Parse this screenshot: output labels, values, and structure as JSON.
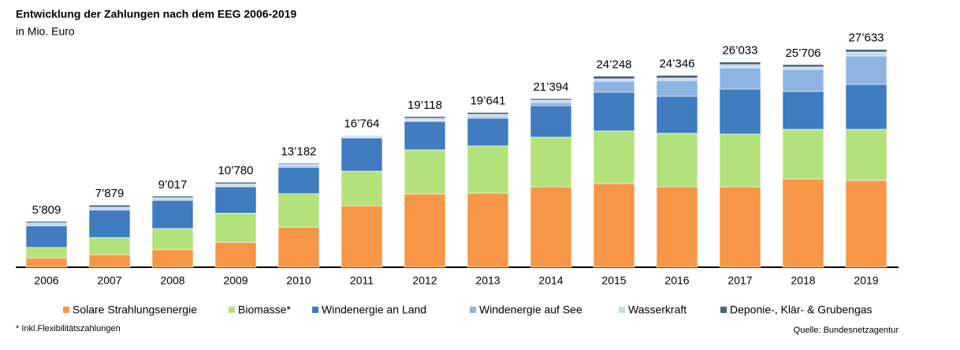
{
  "chart_data": {
    "type": "stacked_bar",
    "title": "Entwicklung der Zahlungen nach dem EEG 2006-2019",
    "subtitle": "in Mio. Euro",
    "categories": [
      "2006",
      "2007",
      "2008",
      "2009",
      "2010",
      "2011",
      "2012",
      "2013",
      "2014",
      "2015",
      "2016",
      "2017",
      "2018",
      "2019"
    ],
    "series": [
      {
        "name": "Solare Strahlungsenergie",
        "color": "#f79646",
        "values": [
          1177,
          1597,
          2219,
          3157,
          5090,
          7800,
          9300,
          9400,
          10200,
          10600,
          10200,
          10200,
          11200,
          11000
        ]
      },
      {
        "name": "Biomasse*",
        "color": "#b3e27d",
        "values": [
          1337,
          2162,
          2699,
          3700,
          4240,
          4400,
          5600,
          6000,
          6300,
          6700,
          6800,
          6700,
          6300,
          6500
        ]
      },
      {
        "name": "Windenergie an Land",
        "color": "#3f7cc0",
        "values": [
          2734,
          3508,
          3561,
          3350,
          3340,
          4200,
          3600,
          3500,
          4000,
          4900,
          4700,
          5700,
          4800,
          5700
        ]
      },
      {
        "name": "Windenergie auf See",
        "color": "#8eb4e3",
        "values": [
          0,
          0,
          0,
          20,
          170,
          100,
          100,
          200,
          400,
          1400,
          2000,
          2700,
          2800,
          3600
        ]
      },
      {
        "name": "Wasserkraft",
        "color": "#c5d9f1",
        "values": [
          370,
          352,
          338,
          353,
          200,
          200,
          300,
          300,
          300,
          300,
          300,
          400,
          300,
          500
        ]
      },
      {
        "name": "Deponie-, Klär- & Grubengas",
        "color": "#4f6373",
        "values": [
          190,
          260,
          200,
          200,
          142,
          64,
          218,
          241,
          194,
          348,
          346,
          333,
          306,
          333
        ]
      }
    ],
    "totals": {
      "values": [
        5809,
        7879,
        9017,
        10780,
        13182,
        16764,
        19118,
        19641,
        21394,
        24248,
        24346,
        26033,
        25706,
        27633
      ],
      "value_labels": [
        "5’809",
        "7’879",
        "9’017",
        "10’780",
        "13’182",
        "16’764",
        "19’118",
        "19’641",
        "21’394",
        "24’248",
        "24’346",
        "26’033",
        "25’706",
        "27’633"
      ]
    },
    "ylim": [
      0,
      30000
    ],
    "footnote": "* Inkl.Flexibilitätszahlungen",
    "source": "Quelle: Bundesnetzagentur"
  }
}
